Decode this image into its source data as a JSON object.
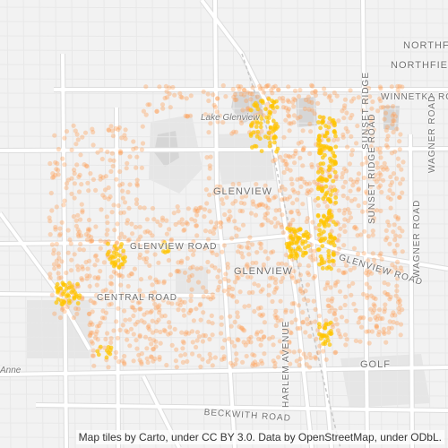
{
  "map": {
    "labels": {
      "northfield_top": "NORTHFIELD",
      "northfield": "NORTHFIELD",
      "winnetka_road": "WINNETKA ROAD",
      "lake_glenview": "Lake Glenview",
      "glenview_north": "GLENVIEW",
      "glenview_road_w": "GLENVIEW ROAD",
      "glenview_center": "GLENVIEW",
      "glenview_road_e": "GLENVIEW ROAD",
      "central_road": "CENTRAL ROAD",
      "sunset_ridge_top": "SUNSET RIDGE",
      "sunset_ridge_road": "SUNSET RIDGE ROAD",
      "wagner_road_top": "WAGNER ROAD",
      "wagner_road": "WAGNER ROAD",
      "harlem_avenue": "HARLEM AVENUE",
      "golf": "GOLF",
      "beckwith_road": "BECKWITH ROAD",
      "anne": "Anne"
    },
    "colors": {
      "background": "#f2f2f2",
      "road": "#ffffff",
      "road_casing": "#dcdcdc",
      "water": "#d6d6d6",
      "park": "#e6e6e6",
      "point_light": "#ff9a4d",
      "point_dense": "#ffc400"
    },
    "attribution": "Map tiles by Carto, under CC BY 3.0. Data by OpenStreetMap, under ODbL."
  }
}
